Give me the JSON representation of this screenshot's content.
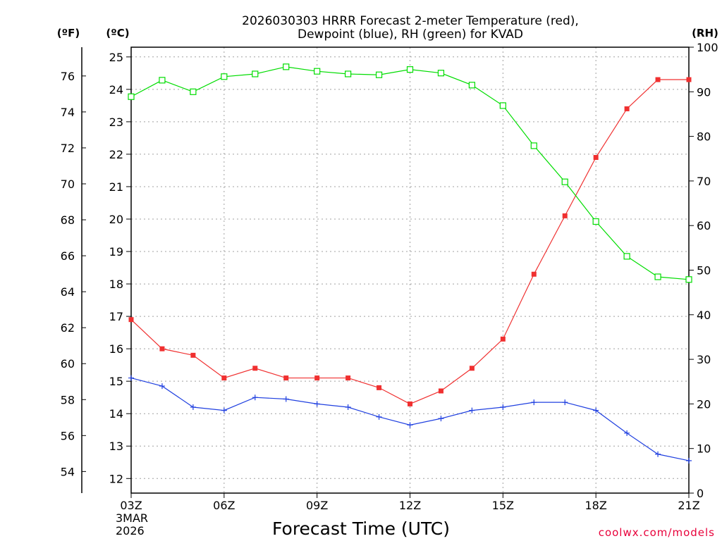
{
  "chart_data": {
    "type": "line",
    "title_line1": "2026030303 HRRR Forecast 2-meter Temperature (red),",
    "title_line2": "Dewpoint (blue), RH (green) for KVAD",
    "xlabel": "Forecast Time (UTC)",
    "credit": "coolwx.com/models",
    "unit_f": "(ºF)",
    "unit_c": "(ºC)",
    "unit_rh": "(RH)",
    "date_line1": "3MAR",
    "date_line2": "2026",
    "x": [
      0,
      1,
      2,
      3,
      4,
      5,
      6,
      7,
      8,
      9,
      10,
      11,
      12,
      13,
      14,
      15,
      16,
      17,
      18
    ],
    "xlim": [
      0,
      18
    ],
    "x_ticks": [
      {
        "pos": 0,
        "label": "03Z"
      },
      {
        "pos": 3,
        "label": "06Z"
      },
      {
        "pos": 6,
        "label": "09Z"
      },
      {
        "pos": 9,
        "label": "12Z"
      },
      {
        "pos": 12,
        "label": "15Z"
      },
      {
        "pos": 15,
        "label": "18Z"
      },
      {
        "pos": 18,
        "label": "21Z"
      }
    ],
    "c_ylim": [
      11.55,
      25.3
    ],
    "c_ticks": [
      "12",
      "13",
      "14",
      "15",
      "16",
      "17",
      "18",
      "19",
      "20",
      "21",
      "22",
      "23",
      "24",
      "25"
    ],
    "f_ylim": [
      52.8,
      77.6
    ],
    "f_ticks": [
      "54",
      "56",
      "58",
      "60",
      "62",
      "64",
      "66",
      "68",
      "70",
      "72",
      "74",
      "76"
    ],
    "rh_ylim": [
      0,
      100
    ],
    "rh_ticks": [
      "0",
      "10",
      "20",
      "30",
      "40",
      "50",
      "60",
      "70",
      "80",
      "90",
      "100"
    ],
    "series": [
      {
        "name": "Temperature",
        "unit": "C",
        "color": "#f03030",
        "marker": "filled-square",
        "values": [
          16.9,
          16.0,
          15.8,
          15.1,
          15.4,
          15.1,
          15.1,
          15.1,
          14.8,
          14.3,
          14.7,
          15.4,
          16.3,
          18.3,
          20.1,
          21.9,
          23.4,
          24.3,
          24.3
        ]
      },
      {
        "name": "Dewpoint",
        "unit": "C",
        "color": "#2040e0",
        "marker": "plus",
        "values": [
          15.1,
          14.85,
          14.2,
          14.1,
          14.5,
          14.45,
          14.3,
          14.2,
          13.9,
          13.65,
          13.85,
          14.1,
          14.2,
          14.35,
          14.35,
          14.1,
          13.4,
          12.75,
          12.55
        ]
      },
      {
        "name": "RH",
        "unit": "%",
        "color": "#00dd00",
        "marker": "open-square",
        "values": [
          88.9,
          92.6,
          90.0,
          93.4,
          94.0,
          95.6,
          94.6,
          94.0,
          93.8,
          95.0,
          94.2,
          91.5,
          86.9,
          77.9,
          69.8,
          60.9,
          53.1,
          48.5,
          47.9
        ]
      }
    ]
  }
}
